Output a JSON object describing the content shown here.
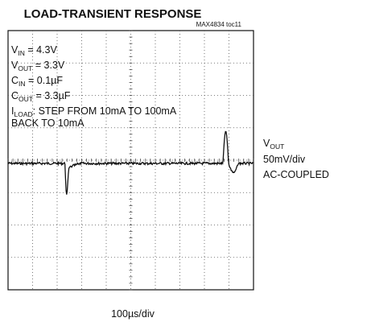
{
  "title": "LOAD-TRANSIENT RESPONSE",
  "figure_id": "MAX4834 toc11",
  "conditions": [
    {
      "main": "V",
      "sub": "IN",
      "rest": " = 4.3V"
    },
    {
      "main": "V",
      "sub": "OUT",
      "rest": " = 3.3V"
    },
    {
      "main": "C",
      "sub": "IN",
      "rest": " = 0.1µF"
    },
    {
      "main": "C",
      "sub": "OUT",
      "rest": " = 3.3µF"
    },
    {
      "main": "I",
      "sub": "LOAD",
      "rest": ": STEP FROM 10mA TO 100mA"
    }
  ],
  "conditions_tail": "BACK TO 10mA",
  "trace_label": {
    "main": "V",
    "sub": "OUT",
    "scale": "50mV/div",
    "coupling": "AC-COUPLED"
  },
  "time_scale": "100µs/div"
}
